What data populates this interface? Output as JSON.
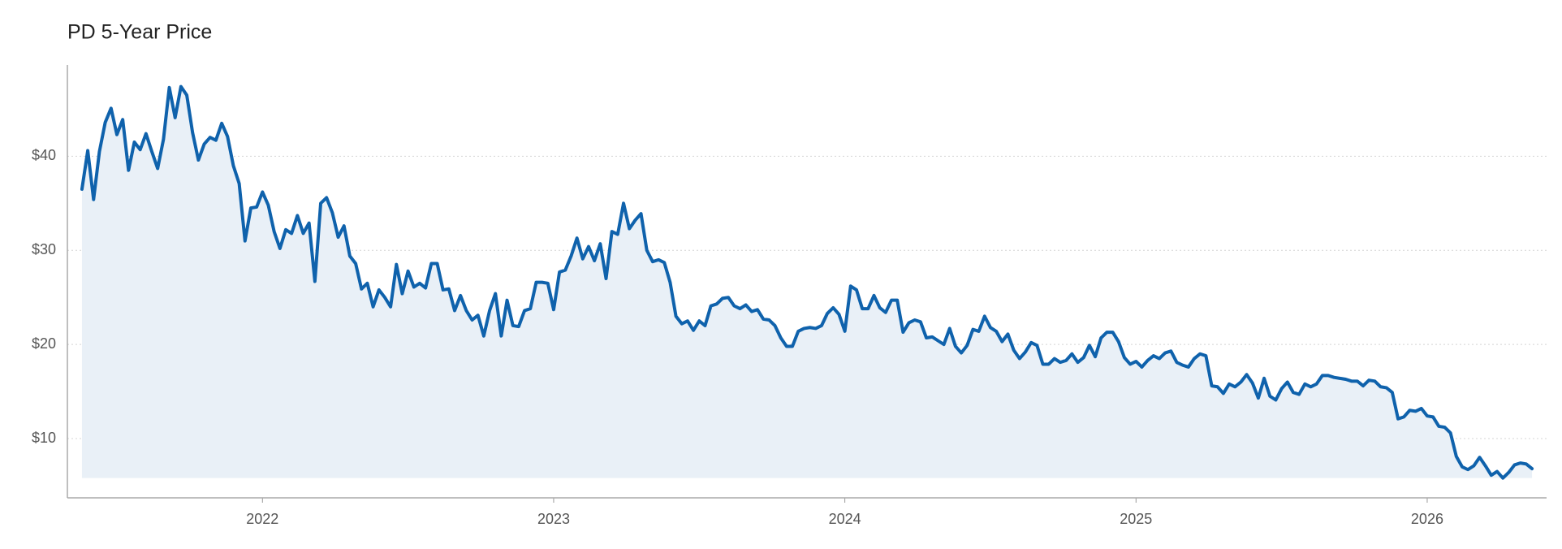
{
  "chart_data": {
    "type": "line",
    "title": "PD 5-Year Price",
    "color": "#0f62ac",
    "area": true,
    "area_color": "#e9f0f7",
    "grid": true,
    "xlim": [
      2021.33,
      2026.41
    ],
    "ylim": [
      3.7,
      49.7
    ],
    "xticks": [
      2022,
      2023,
      2024,
      2025,
      2026
    ],
    "yticks": [
      {
        "value": 10,
        "label": "$10"
      },
      {
        "value": 20,
        "label": "$20"
      },
      {
        "value": 30,
        "label": "$30"
      },
      {
        "value": 40,
        "label": "$40"
      }
    ],
    "x": [
      2021.38,
      2021.4,
      2021.42,
      2021.44,
      2021.46,
      2021.48,
      2021.5,
      2021.52,
      2021.54,
      2021.56,
      2021.58,
      2021.6,
      2021.62,
      2021.64,
      2021.66,
      2021.68,
      2021.7,
      2021.72,
      2021.74,
      2021.76,
      2021.78,
      2021.8,
      2021.82,
      2021.84,
      2021.86,
      2021.88,
      2021.9,
      2021.92,
      2021.94,
      2021.96,
      2021.98,
      2022,
      2022.02,
      2022.04,
      2022.06,
      2022.08,
      2022.1,
      2022.12,
      2022.14,
      2022.16,
      2022.18,
      2022.2,
      2022.22,
      2022.24,
      2022.26,
      2022.28,
      2022.3,
      2022.32,
      2022.34,
      2022.36,
      2022.38,
      2022.4,
      2022.42,
      2022.44,
      2022.46,
      2022.48,
      2022.5,
      2022.52,
      2022.54,
      2022.56,
      2022.58,
      2022.6,
      2022.62,
      2022.64,
      2022.66,
      2022.68,
      2022.7,
      2022.72,
      2022.74,
      2022.76,
      2022.78,
      2022.8,
      2022.82,
      2022.84,
      2022.86,
      2022.88,
      2022.9,
      2022.92,
      2022.94,
      2022.96,
      2022.98,
      2023,
      2023.02,
      2023.04,
      2023.06,
      2023.08,
      2023.1,
      2023.12,
      2023.14,
      2023.16,
      2023.18,
      2023.2,
      2023.22,
      2023.24,
      2023.26,
      2023.28,
      2023.3,
      2023.32,
      2023.34,
      2023.36,
      2023.38,
      2023.4,
      2023.42,
      2023.44,
      2023.46,
      2023.48,
      2023.5,
      2023.52,
      2023.54,
      2023.56,
      2023.58,
      2023.6,
      2023.62,
      2023.64,
      2023.66,
      2023.68,
      2023.7,
      2023.72,
      2023.74,
      2023.76,
      2023.78,
      2023.8,
      2023.82,
      2023.84,
      2023.86,
      2023.88,
      2023.9,
      2023.92,
      2023.94,
      2023.96,
      2023.98,
      2024,
      2024.02,
      2024.04,
      2024.06,
      2024.08,
      2024.1,
      2024.12,
      2024.14,
      2024.16,
      2024.18,
      2024.2,
      2024.22,
      2024.24,
      2024.26,
      2024.28,
      2024.3,
      2024.32,
      2024.34,
      2024.36,
      2024.38,
      2024.4,
      2024.42,
      2024.44,
      2024.46,
      2024.48,
      2024.5,
      2024.52,
      2024.54,
      2024.56,
      2024.58,
      2024.6,
      2024.62,
      2024.64,
      2024.66,
      2024.68,
      2024.7,
      2024.72,
      2024.74,
      2024.76,
      2024.78,
      2024.8,
      2024.82,
      2024.84,
      2024.86,
      2024.88,
      2024.9,
      2024.92,
      2024.94,
      2024.96,
      2024.98,
      2025,
      2025.02,
      2025.04,
      2025.06,
      2025.08,
      2025.1,
      2025.12,
      2025.14,
      2025.16,
      2025.18,
      2025.2,
      2025.22,
      2025.24,
      2025.26,
      2025.28,
      2025.3,
      2025.32,
      2025.34,
      2025.36,
      2025.38,
      2025.4,
      2025.42,
      2025.44,
      2025.46,
      2025.48,
      2025.5,
      2025.52,
      2025.54,
      2025.56,
      2025.58,
      2025.6,
      2025.62,
      2025.64,
      2025.66,
      2025.68,
      2025.7,
      2025.72,
      2025.74,
      2025.76,
      2025.78,
      2025.8,
      2025.82,
      2025.84,
      2025.86,
      2025.88,
      2025.9,
      2025.92,
      2025.94,
      2025.96,
      2025.98,
      2026,
      2026.02,
      2026.04,
      2026.06,
      2026.08,
      2026.1,
      2026.12,
      2026.14,
      2026.16,
      2026.18,
      2026.2,
      2026.22,
      2026.24,
      2026.26,
      2026.28,
      2026.3,
      2026.32,
      2026.34,
      2026.36
    ],
    "values": [
      36.5,
      40.6,
      35.4,
      40.5,
      43.6,
      45.1,
      42.3,
      43.9,
      38.5,
      41.5,
      40.7,
      42.4,
      40.5,
      38.7,
      41.8,
      47.3,
      44.1,
      47.4,
      46.5,
      42.5,
      39.6,
      41.3,
      42.0,
      41.7,
      43.5,
      42.1,
      39.0,
      37.1,
      31.0,
      34.5,
      34.6,
      36.2,
      34.8,
      32.0,
      30.2,
      32.2,
      31.8,
      33.7,
      31.8,
      32.9,
      26.7,
      35.0,
      35.6,
      34.0,
      31.4,
      32.6,
      29.4,
      28.6,
      25.9,
      26.5,
      24.0,
      25.8,
      25.0,
      24.0,
      28.5,
      25.4,
      27.8,
      26.1,
      26.5,
      26.0,
      28.6,
      28.6,
      25.8,
      25.9,
      23.6,
      25.2,
      23.6,
      22.6,
      23.1,
      20.9,
      23.6,
      25.4,
      20.9,
      24.7,
      22.0,
      21.9,
      23.6,
      23.8,
      26.6,
      26.6,
      26.5,
      23.7,
      27.7,
      27.9,
      29.4,
      31.3,
      29.1,
      30.4,
      28.9,
      30.7,
      27.0,
      32.0,
      31.7,
      35.0,
      32.3,
      33.2,
      33.9,
      30.0,
      28.8,
      29.0,
      28.7,
      26.6,
      23.0,
      22.2,
      22.5,
      21.5,
      22.5,
      22.0,
      24.1,
      24.3,
      24.9,
      25.0,
      24.1,
      23.8,
      24.2,
      23.5,
      23.7,
      22.7,
      22.6,
      22.0,
      20.7,
      19.8,
      19.8,
      21.4,
      21.7,
      21.8,
      21.7,
      22.0,
      23.3,
      23.9,
      23.2,
      21.4,
      26.2,
      25.8,
      23.8,
      23.8,
      25.2,
      23.9,
      23.4,
      24.7,
      24.7,
      21.3,
      22.3,
      22.6,
      22.4,
      20.7,
      20.8,
      20.4,
      20.0,
      21.7,
      19.8,
      19.1,
      19.9,
      21.6,
      21.4,
      23.0,
      21.8,
      21.4,
      20.3,
      21.1,
      19.4,
      18.5,
      19.2,
      20.2,
      19.9,
      17.9,
      17.9,
      18.5,
      18.1,
      18.3,
      19.0,
      18.1,
      18.6,
      19.9,
      18.7,
      20.7,
      21.3,
      21.3,
      20.3,
      18.6,
      17.9,
      18.2,
      17.6,
      18.3,
      18.8,
      18.5,
      19.1,
      19.3,
      18.1,
      17.8,
      17.6,
      18.5,
      19.0,
      18.8,
      15.6,
      15.5,
      14.8,
      15.8,
      15.5,
      16.0,
      16.8,
      15.9,
      14.3,
      16.4,
      14.5,
      14.1,
      15.3,
      16.0,
      14.9,
      14.7,
      15.8,
      15.5,
      15.8,
      16.7,
      16.7,
      16.5,
      16.4,
      16.3,
      16.1,
      16.1,
      15.6,
      16.2,
      16.1,
      15.5,
      15.4,
      14.9,
      12.1,
      12.3,
      13.0,
      12.9,
      13.2,
      12.4,
      12.3,
      11.3,
      11.2,
      10.6,
      8.1,
      7.0,
      6.7,
      7.1,
      8.0,
      7.1,
      6.1,
      6.5,
      5.8,
      6.4,
      7.2,
      7.4,
      7.3,
      6.8
    ]
  }
}
